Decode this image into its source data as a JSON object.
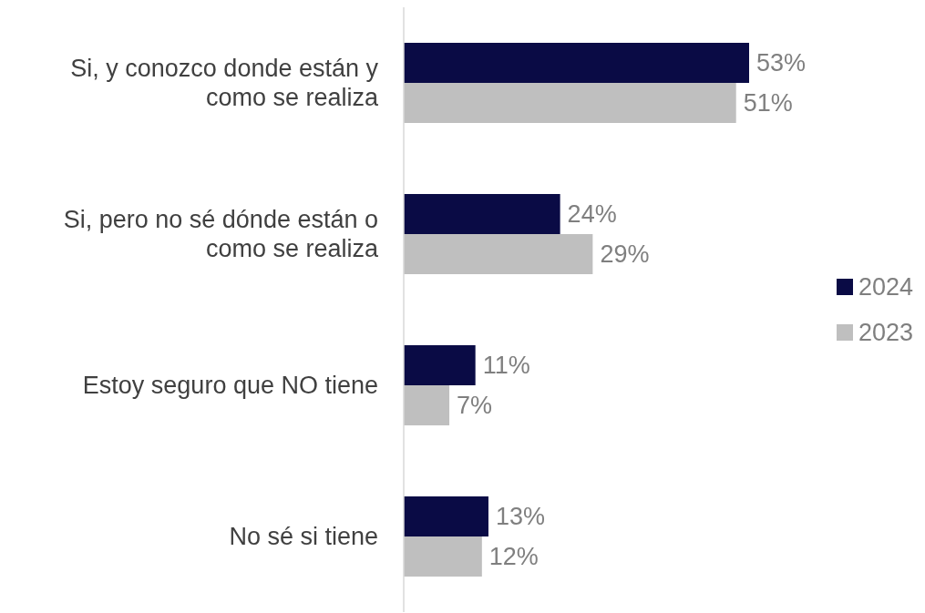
{
  "chart_data": {
    "type": "bar",
    "orientation": "horizontal",
    "categories": [
      "Si, y conozco donde están y como se realiza",
      "Si, pero no sé dónde están o como se realiza",
      "Estoy seguro que NO tiene",
      "No sé si tiene"
    ],
    "series": [
      {
        "name": "2024",
        "color": "#0a0b45",
        "values": [
          53,
          24,
          11,
          13
        ],
        "value_labels": [
          "53%",
          "24%",
          "11%",
          "13%"
        ]
      },
      {
        "name": "2023",
        "color": "#bfbfbf",
        "values": [
          51,
          29,
          7,
          12
        ],
        "value_labels": [
          "51%",
          "29%",
          "7%",
          "12%"
        ]
      }
    ],
    "legend": "right"
  }
}
